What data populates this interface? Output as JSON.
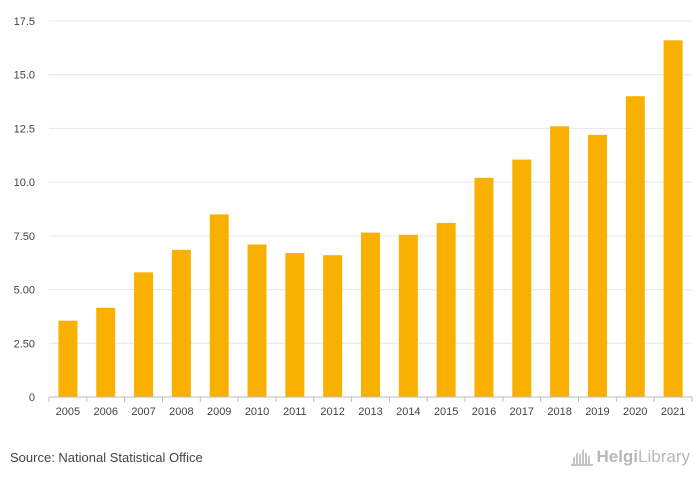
{
  "chart_data": {
    "type": "bar",
    "title": "",
    "xlabel": "",
    "ylabel": "",
    "categories": [
      "2005",
      "2006",
      "2007",
      "2008",
      "2009",
      "2010",
      "2011",
      "2012",
      "2013",
      "2014",
      "2015",
      "2016",
      "2017",
      "2018",
      "2019",
      "2020",
      "2021"
    ],
    "values": [
      3.55,
      4.15,
      5.8,
      6.85,
      8.5,
      7.1,
      6.7,
      6.6,
      7.65,
      7.55,
      8.1,
      10.2,
      11.05,
      12.6,
      12.2,
      14.0,
      16.6
    ],
    "ylim": [
      0,
      17.5
    ],
    "yticks": [
      "0",
      "2.50",
      "5.00",
      "7.50",
      "10.0",
      "12.5",
      "15.0",
      "17.5"
    ],
    "ytick_values": [
      0,
      2.5,
      5,
      7.5,
      10,
      12.5,
      15,
      17.5
    ],
    "grid": true,
    "bar_color": "#f9b000",
    "grid_color": "#e6e6e6",
    "axis_color": "#bbbbbb"
  },
  "source": "Source: National Statistical Office",
  "brand": {
    "name_part1": "Helgi",
    "name_part2": "Library",
    "logo_icon": "library-building-icon"
  }
}
